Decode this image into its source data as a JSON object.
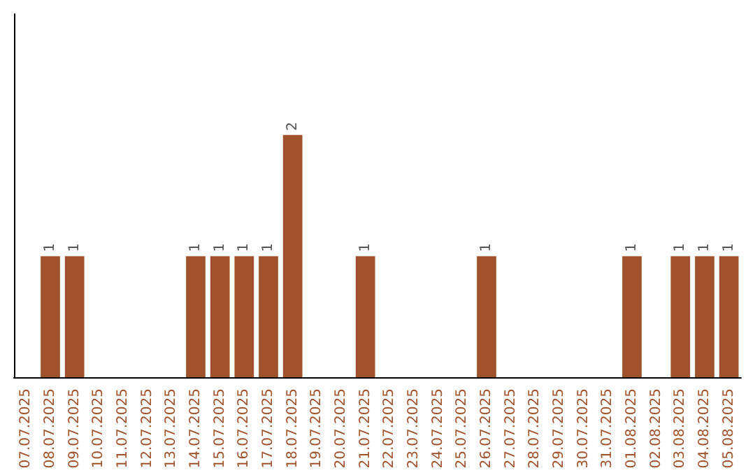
{
  "chart_data": {
    "type": "bar",
    "categories": [
      "07.07.2025",
      "08.07.2025",
      "09.07.2025",
      "10.07.2025",
      "11.07.2025",
      "12.07.2025",
      "13.07.2025",
      "14.07.2025",
      "15.07.2025",
      "16.07.2025",
      "17.07.2025",
      "18.07.2025",
      "19.07.2025",
      "20.07.2025",
      "21.07.2025",
      "22.07.2025",
      "23.07.2025",
      "24.07.2025",
      "25.07.2025",
      "26.07.2025",
      "27.07.2025",
      "28.07.2025",
      "29.07.2025",
      "30.07.2025",
      "31.07.2025",
      "01.08.2025",
      "02.08.2025",
      "03.08.2025",
      "04.08.2025",
      "05.08.2025"
    ],
    "values": [
      0,
      1,
      1,
      0,
      0,
      0,
      0,
      1,
      1,
      1,
      1,
      2,
      0,
      0,
      1,
      0,
      0,
      0,
      0,
      1,
      0,
      0,
      0,
      0,
      0,
      1,
      0,
      1,
      1,
      1
    ],
    "value_labels": [
      null,
      "1",
      "1",
      null,
      null,
      null,
      null,
      "1",
      "1",
      "1",
      "1",
      "2",
      null,
      null,
      "1",
      null,
      null,
      null,
      null,
      "1",
      null,
      null,
      null,
      null,
      null,
      "1",
      null,
      "1",
      "1",
      "1"
    ],
    "color": "#a0522d",
    "ylim": [
      0,
      3
    ],
    "tick_labels": "x",
    "grid": false
  }
}
